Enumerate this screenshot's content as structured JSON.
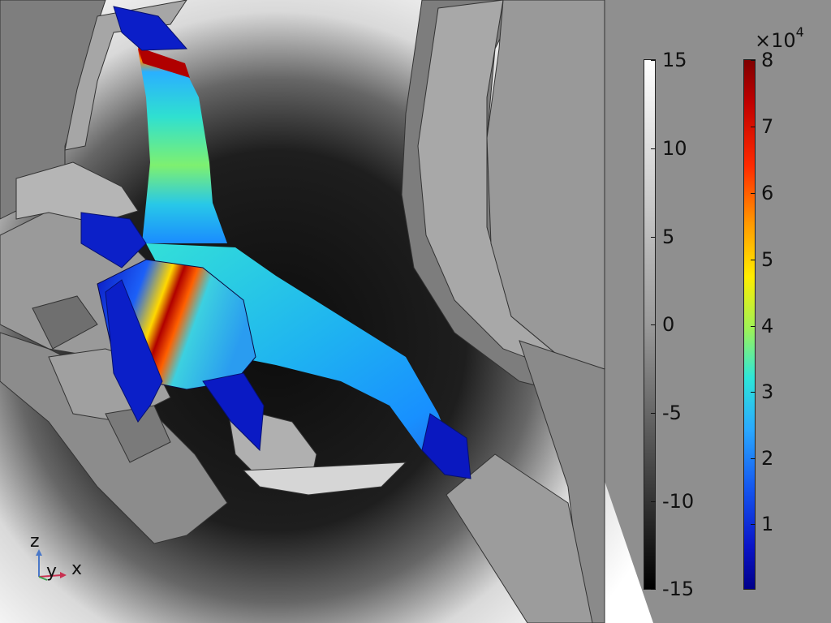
{
  "colorbar_left": {
    "ticks": [
      "15",
      "10",
      "5",
      "0",
      "-5",
      "-10",
      "-15"
    ],
    "max": 15,
    "min": -15,
    "colormap": "grayscale"
  },
  "colorbar_right": {
    "multiplier_base": "×10",
    "multiplier_exp": "4",
    "ticks": [
      "8",
      "7",
      "6",
      "5",
      "4",
      "3",
      "2",
      "1"
    ],
    "max": 8,
    "min": 0,
    "colormap": "rainbow"
  },
  "axes": {
    "z": "z",
    "y": "y",
    "x": "x"
  },
  "colors": {
    "background_white": "#ffffff",
    "shadow_dark": "#1c1c1c",
    "geometry_gray": "#8c8c8c",
    "surface_peak": "#b00000",
    "surface_low": "#0a1ad0"
  }
}
